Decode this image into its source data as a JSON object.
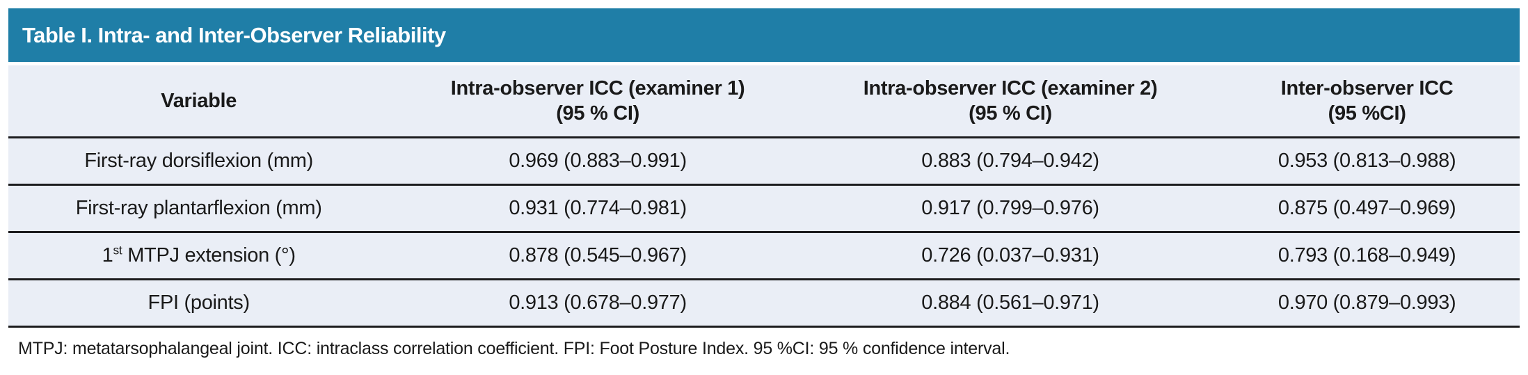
{
  "theme": {
    "accent": "#1f7ea7",
    "row_bg": "#eaeef6",
    "rule_color": "#1c1c1e",
    "text_color": "#1a1a1a",
    "title_text_color": "#ffffff",
    "page_bg": "#ffffff"
  },
  "table": {
    "title": "Table I. Intra- and Inter-Observer Reliability",
    "headers": [
      {
        "line1": "Variable",
        "line2": ""
      },
      {
        "line1": "Intra-observer ICC (examiner 1)",
        "line2": "(95 % CI)"
      },
      {
        "line1": "Intra-observer ICC (examiner 2)",
        "line2": "(95 % CI)"
      },
      {
        "line1": "Inter-observer ICC",
        "line2": "(95 %CI)"
      }
    ],
    "rows": [
      {
        "variable": "First-ray dorsiflexion (mm)",
        "examiner1": "0.969 (0.883–0.991)",
        "examiner2": "0.883 (0.794–0.942)",
        "inter_observer": "0.953 (0.813–0.988)"
      },
      {
        "variable": "First-ray plantarflexion (mm)",
        "examiner1": "0.931 (0.774–0.981)",
        "examiner2": "0.917 (0.799–0.976)",
        "inter_observer": "0.875 (0.497–0.969)"
      },
      {
        "variable_pre": "1",
        "variable_sup": "st",
        "variable_post": " MTPJ extension (°)",
        "examiner1": "0.878 (0.545–0.967)",
        "examiner2": "0.726 (0.037–0.931)",
        "inter_observer": "0.793 (0.168–0.949)"
      },
      {
        "variable": "FPI (points)",
        "examiner1": "0.913 (0.678–0.977)",
        "examiner2": "0.884 (0.561–0.971)",
        "inter_observer": "0.970 (0.879–0.993)"
      }
    ],
    "footnote": "MTPJ: metatarsophalangeal joint. ICC: intraclass correlation coefficient. FPI: Foot Posture Index. 95 %CI: 95 % confidence interval."
  }
}
